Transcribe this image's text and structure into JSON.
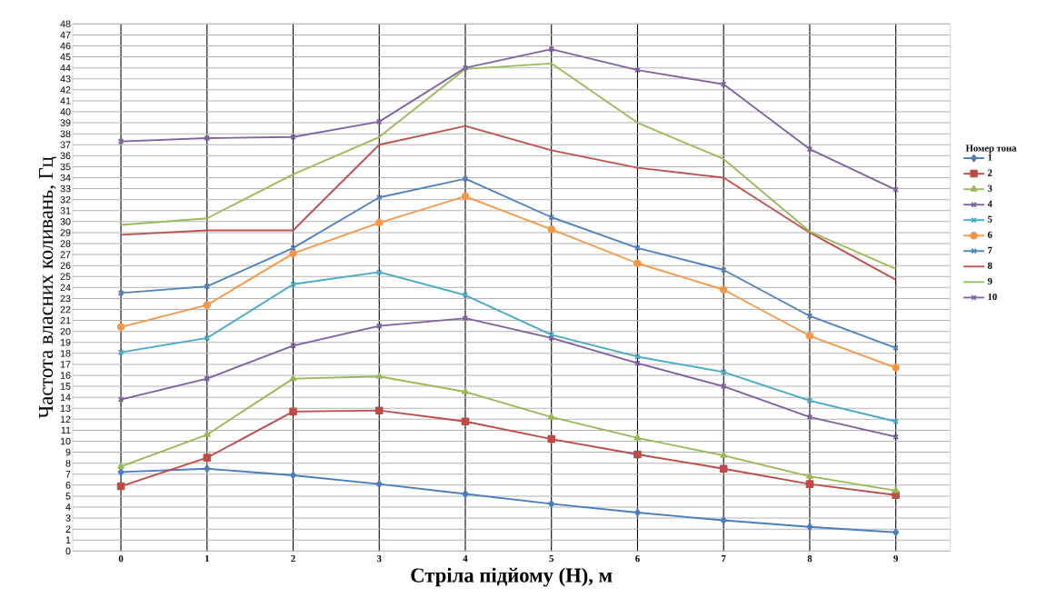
{
  "chart_data": {
    "type": "line",
    "xlabel": "Стріла підйому (Н), м",
    "ylabel": "Частота власних коливань, Гц",
    "legend_title": "Номер тона",
    "categories": [
      "0",
      "1",
      "2",
      "3",
      "4",
      "5",
      "6",
      "7",
      "8",
      "9"
    ],
    "ylim": [
      0,
      48
    ],
    "yticks": [
      0,
      1,
      2,
      3,
      4,
      5,
      6,
      7,
      8,
      9,
      10,
      11,
      12,
      13,
      14,
      15,
      16,
      17,
      18,
      19,
      20,
      21,
      22,
      23,
      24,
      25,
      26,
      27,
      28,
      29,
      30,
      31,
      32,
      33,
      34,
      35,
      36,
      37,
      38,
      39,
      40,
      41,
      42,
      43,
      44,
      45,
      46,
      47,
      48
    ],
    "grid": true,
    "legend": "right",
    "line_style": "solid",
    "series": [
      {
        "name": "1",
        "color": "#4a7ebb",
        "marker": "diamond",
        "values": [
          7.2,
          7.5,
          6.9,
          6.1,
          5.2,
          4.3,
          3.5,
          2.8,
          2.2,
          1.7
        ]
      },
      {
        "name": "2",
        "color": "#be4b48",
        "marker": "square",
        "values": [
          5.9,
          8.5,
          12.7,
          12.8,
          11.8,
          10.2,
          8.8,
          7.5,
          6.1,
          5.1
        ]
      },
      {
        "name": "3",
        "color": "#98b954",
        "marker": "triangle",
        "values": [
          7.7,
          10.6,
          15.7,
          15.9,
          14.5,
          12.2,
          10.3,
          8.7,
          6.8,
          5.5
        ]
      },
      {
        "name": "4",
        "color": "#7d60a0",
        "marker": "cross",
        "values": [
          13.8,
          15.7,
          18.7,
          20.5,
          21.2,
          19.4,
          17.1,
          15.0,
          12.2,
          10.4
        ]
      },
      {
        "name": "5",
        "color": "#46aac5",
        "marker": "cross",
        "values": [
          18.1,
          19.4,
          24.3,
          25.4,
          23.3,
          19.7,
          17.7,
          16.3,
          13.7,
          11.8
        ]
      },
      {
        "name": "6",
        "color": "#f79646",
        "marker": "circle",
        "values": [
          20.4,
          22.4,
          27.1,
          29.9,
          32.3,
          29.3,
          26.2,
          23.8,
          19.6,
          16.7
        ]
      },
      {
        "name": "7",
        "color": "#4f81bd",
        "marker": "cross",
        "values": [
          23.5,
          24.1,
          27.6,
          32.2,
          33.9,
          30.4,
          27.6,
          25.6,
          21.4,
          18.5
        ]
      },
      {
        "name": "8",
        "color": "#c0504d",
        "marker": "none",
        "values": [
          28.8,
          29.2,
          29.2,
          37.0,
          38.7,
          36.5,
          34.9,
          34.0,
          29.0,
          24.7
        ]
      },
      {
        "name": "9",
        "color": "#9bbb59",
        "marker": "none",
        "values": [
          29.7,
          30.3,
          34.3,
          37.7,
          43.9,
          44.4,
          39.0,
          35.7,
          29.1,
          25.7
        ]
      },
      {
        "name": "10",
        "color": "#8064a2",
        "marker": "cross",
        "values": [
          37.3,
          37.6,
          37.7,
          39.1,
          44.0,
          45.7,
          43.8,
          42.5,
          36.6,
          32.9
        ]
      }
    ]
  }
}
